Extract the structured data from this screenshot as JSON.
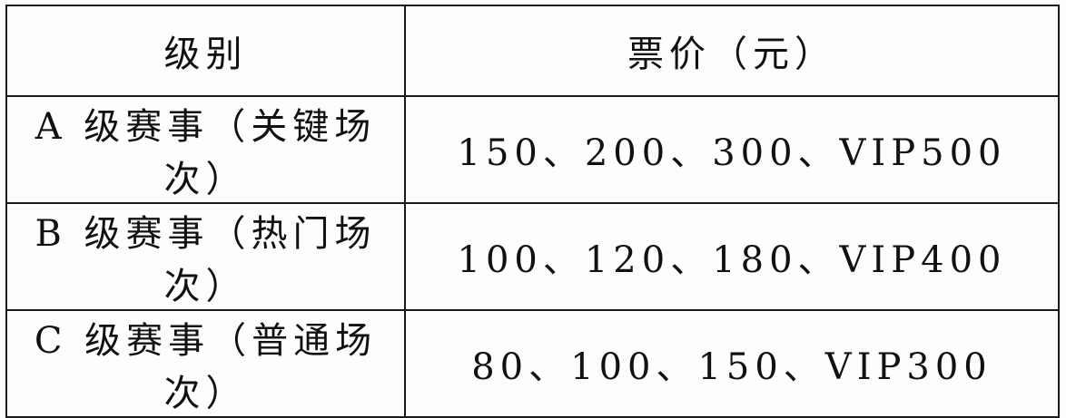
{
  "table": {
    "headers": [
      "级别",
      "票价（元）"
    ],
    "rows": [
      [
        "A 级赛事（关键场次）",
        "150、200、300、VIP500"
      ],
      [
        "B 级赛事（热门场次）",
        "100、120、180、VIP400"
      ],
      [
        "C 级赛事（普通场次）",
        "80、100、150、VIP300"
      ]
    ]
  }
}
